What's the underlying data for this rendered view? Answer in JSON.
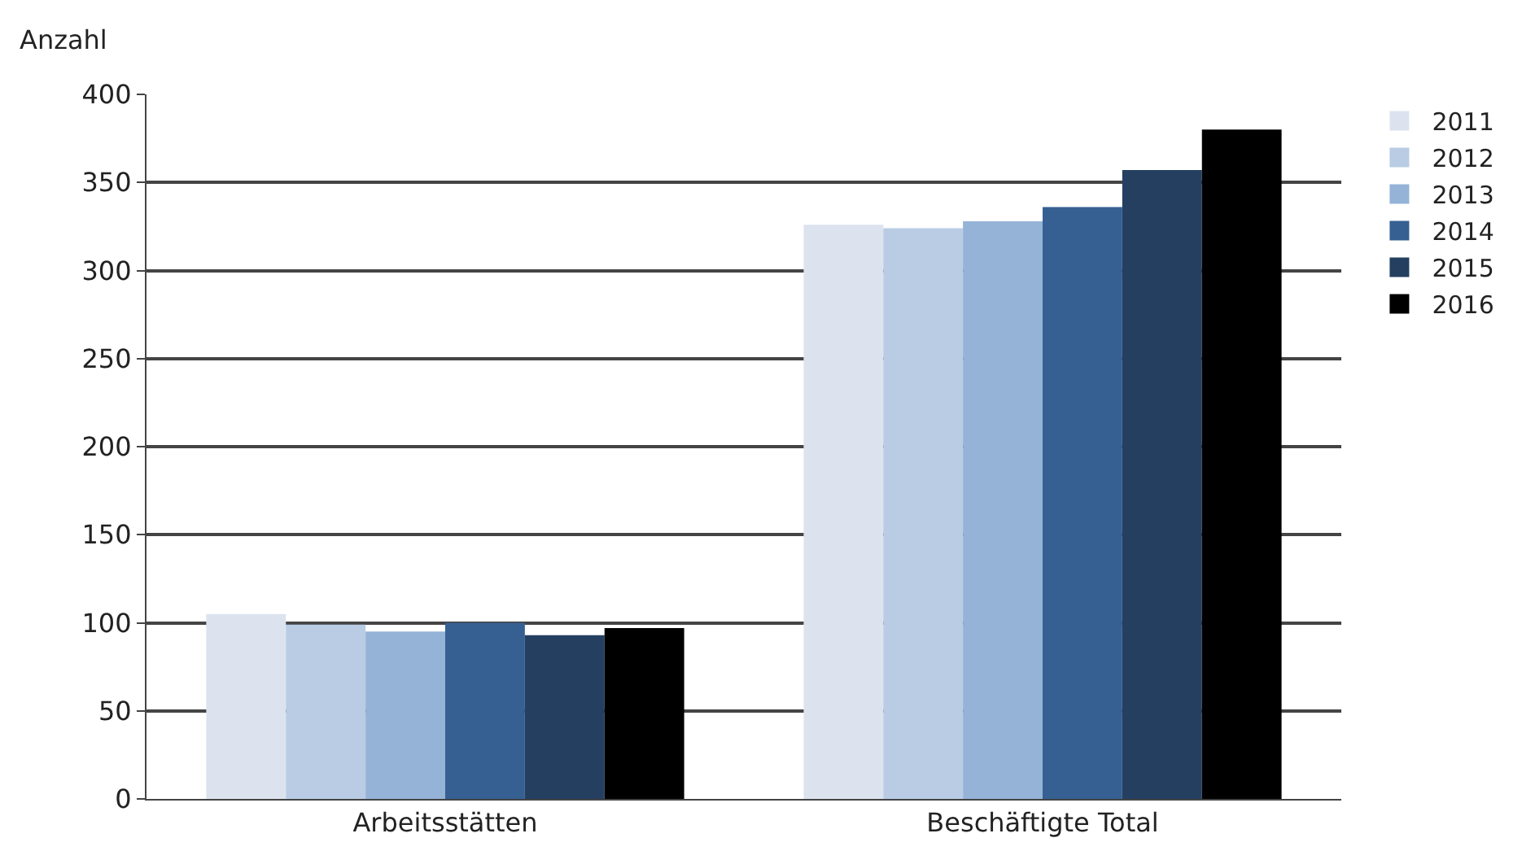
{
  "chart_data": {
    "type": "bar",
    "ylabel": "Anzahl",
    "categories": [
      "Arbeitsstätten",
      "Beschäftigte Total"
    ],
    "series": [
      {
        "name": "2011",
        "color": "#dce3ef",
        "values": [
          105,
          326
        ]
      },
      {
        "name": "2012",
        "color": "#b9cce4",
        "values": [
          99,
          324
        ]
      },
      {
        "name": "2013",
        "color": "#95b3d7",
        "values": [
          95,
          328
        ]
      },
      {
        "name": "2014",
        "color": "#366092",
        "values": [
          100,
          336
        ]
      },
      {
        "name": "2015",
        "color": "#243f60",
        "values": [
          93,
          357
        ]
      },
      {
        "name": "2016",
        "color": "#000000",
        "values": [
          97,
          380
        ]
      }
    ],
    "ylim": [
      0,
      400
    ],
    "yticks": [
      0,
      50,
      100,
      150,
      200,
      250,
      300,
      350,
      400
    ],
    "grid": "y",
    "legend": "right"
  }
}
